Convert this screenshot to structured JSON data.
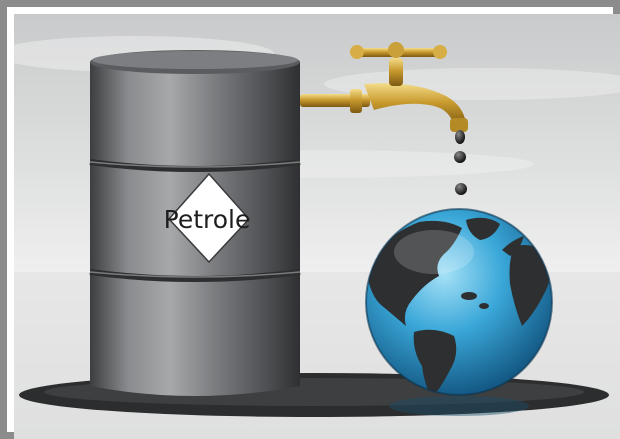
{
  "image": {
    "barrel_label": "Petrole",
    "colors": {
      "sky_top": "#d2d3d2",
      "sky_bottom": "#eceded",
      "ground": "#dcdcdc",
      "barrel": "#6f7073",
      "faucet_brass": "#c9a23a",
      "oil_drop": "#2a2a2a",
      "ocean": "#3aa7d8",
      "land": "#2d2f31",
      "frame_border": "#8c8c8c"
    }
  }
}
